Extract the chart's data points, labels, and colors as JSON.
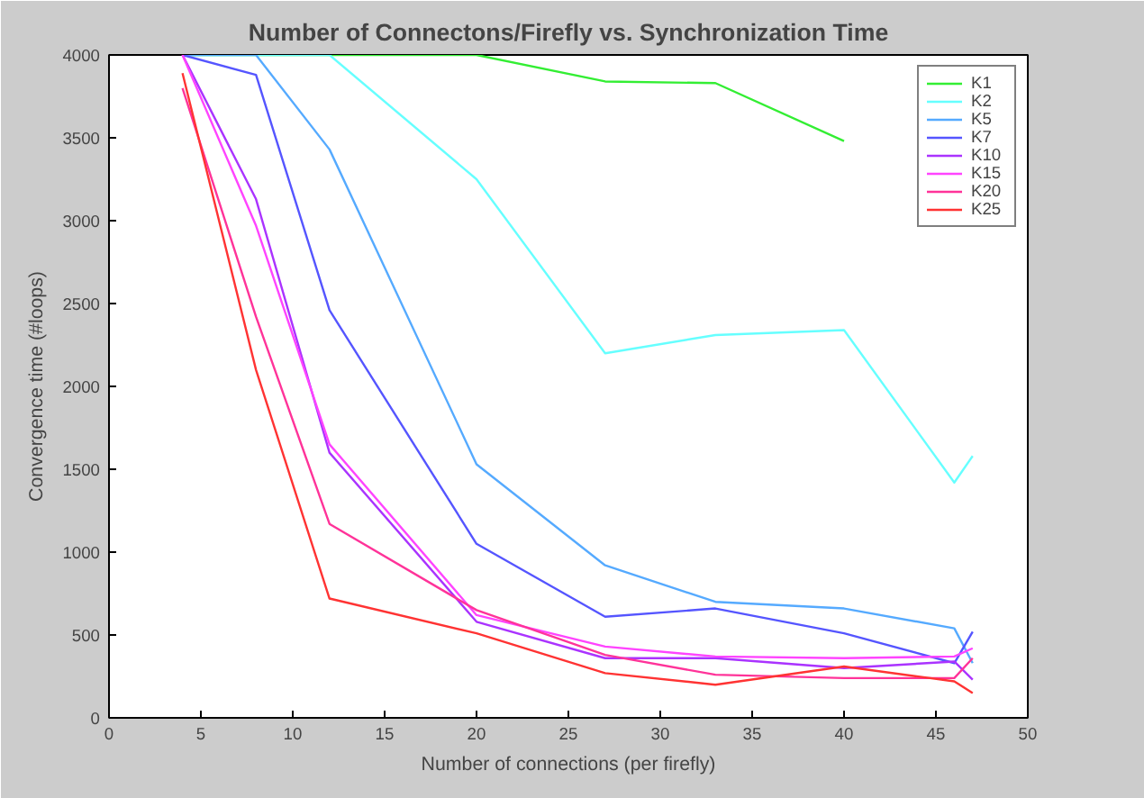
{
  "chart_data": {
    "type": "line",
    "title": "Number of Connectons/Firefly vs. Synchronization Time",
    "xlabel": "Number of connections (per firefly)",
    "ylabel": "Convergence time (#loops)",
    "x": [
      4,
      8,
      12,
      20,
      27,
      33,
      40,
      46,
      47
    ],
    "series": [
      {
        "name": "K1",
        "color": "#33ee33",
        "values": [
          4000,
          4000,
          4000,
          4000,
          3840,
          3830,
          3480,
          null,
          null
        ]
      },
      {
        "name": "K2",
        "color": "#66ffff",
        "values": [
          4000,
          4000,
          4000,
          3250,
          2200,
          2310,
          2340,
          1420,
          1580
        ]
      },
      {
        "name": "K5",
        "color": "#55aaff",
        "values": [
          4000,
          4000,
          3430,
          1530,
          920,
          700,
          660,
          540,
          330
        ]
      },
      {
        "name": "K7",
        "color": "#5555ff",
        "values": [
          4000,
          3880,
          2460,
          1050,
          610,
          660,
          510,
          330,
          520
        ]
      },
      {
        "name": "K10",
        "color": "#aa33ff",
        "values": [
          4000,
          3130,
          1600,
          580,
          360,
          360,
          300,
          340,
          230
        ]
      },
      {
        "name": "K15",
        "color": "#ff44ff",
        "values": [
          4000,
          2970,
          1650,
          620,
          430,
          370,
          360,
          370,
          420
        ]
      },
      {
        "name": "K20",
        "color": "#ff3399",
        "values": [
          3800,
          2420,
          1170,
          650,
          380,
          260,
          240,
          240,
          360
        ]
      },
      {
        "name": "K25",
        "color": "#ff3333",
        "values": [
          3890,
          2100,
          720,
          510,
          270,
          200,
          310,
          220,
          150
        ]
      }
    ],
    "xlim": [
      0,
      50
    ],
    "xticks": [
      0,
      5,
      10,
      15,
      20,
      25,
      30,
      35,
      40,
      45,
      50
    ],
    "ylim": [
      0,
      4000
    ],
    "yticks": [
      0,
      500,
      1000,
      1500,
      2000,
      2500,
      3000,
      3500,
      4000
    ],
    "grid": false,
    "legend": "top right",
    "marker": "none",
    "line_style": "solid"
  }
}
